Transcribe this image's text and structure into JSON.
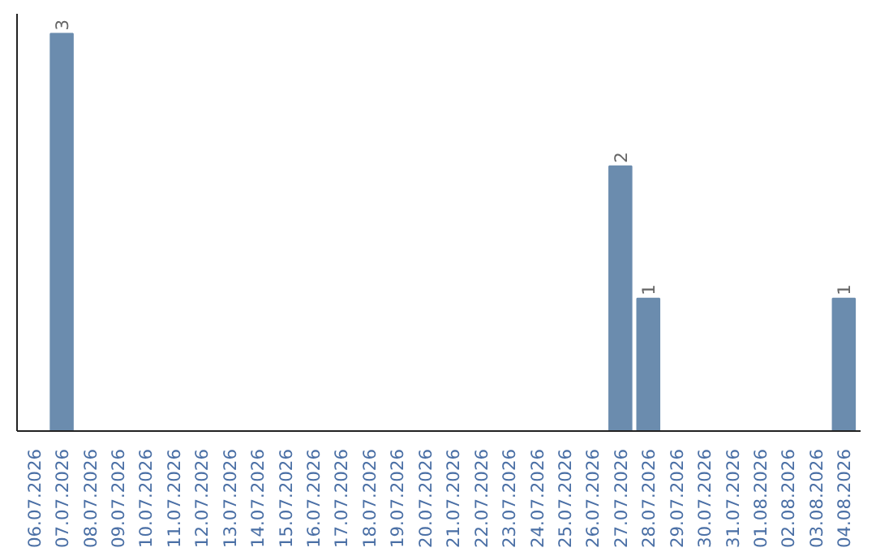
{
  "chart_data": {
    "type": "bar",
    "categories": [
      "06.07.2026",
      "07.07.2026",
      "08.07.2026",
      "09.07.2026",
      "10.07.2026",
      "11.07.2026",
      "12.07.2026",
      "13.07.2026",
      "14.07.2026",
      "15.07.2026",
      "16.07.2026",
      "17.07.2026",
      "18.07.2026",
      "19.07.2026",
      "20.07.2026",
      "21.07.2026",
      "22.07.2026",
      "23.07.2026",
      "24.07.2026",
      "25.07.2026",
      "26.07.2026",
      "27.07.2026",
      "28.07.2026",
      "29.07.2026",
      "30.07.2026",
      "31.07.2026",
      "01.08.2026",
      "02.08.2026",
      "03.08.2026",
      "04.08.2026"
    ],
    "values": [
      0,
      3,
      0,
      0,
      0,
      0,
      0,
      0,
      0,
      0,
      0,
      0,
      0,
      0,
      0,
      0,
      0,
      0,
      0,
      0,
      0,
      2,
      1,
      0,
      0,
      0,
      0,
      0,
      0,
      1
    ],
    "value_labels": [
      null,
      "3",
      null,
      null,
      null,
      null,
      null,
      null,
      null,
      null,
      null,
      null,
      null,
      null,
      null,
      null,
      null,
      null,
      null,
      null,
      null,
      "2",
      "1",
      null,
      null,
      null,
      null,
      null,
      null,
      "1"
    ],
    "color": "#6b8cae",
    "grid": false,
    "tick_labels": "x"
  }
}
